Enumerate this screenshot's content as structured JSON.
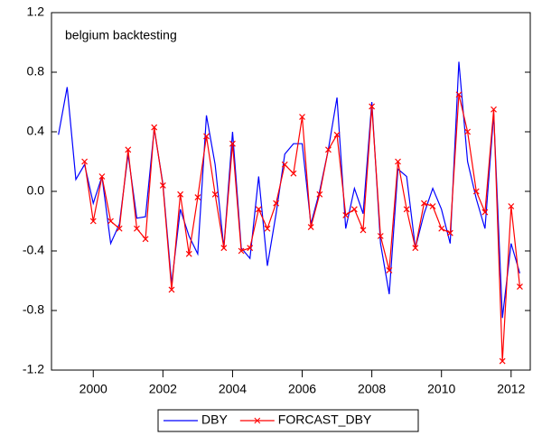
{
  "chart_data": {
    "type": "line",
    "annotation": "belgium backtesting",
    "x": [
      1999,
      1999.25,
      1999.5,
      1999.75,
      2000,
      2000.25,
      2000.5,
      2000.75,
      2001,
      2001.25,
      2001.5,
      2001.75,
      2002,
      2002.25,
      2002.5,
      2002.75,
      2003,
      2003.25,
      2003.5,
      2003.75,
      2004,
      2004.25,
      2004.5,
      2004.75,
      2005,
      2005.25,
      2005.5,
      2005.75,
      2006,
      2006.25,
      2006.5,
      2006.75,
      2007,
      2007.25,
      2007.5,
      2007.75,
      2008,
      2008.25,
      2008.5,
      2008.75,
      2009,
      2009.25,
      2009.5,
      2009.75,
      2010,
      2010.25,
      2010.5,
      2010.75,
      2011,
      2011.25,
      2011.5,
      2011.75,
      2012,
      2012.25
    ],
    "series": [
      {
        "name": "DBY",
        "color": "#0000ff",
        "marker": "none",
        "values": [
          0.38,
          0.7,
          0.08,
          0.18,
          -0.08,
          0.1,
          -0.35,
          -0.22,
          0.25,
          -0.18,
          -0.17,
          0.42,
          0.05,
          -0.62,
          -0.12,
          -0.3,
          -0.42,
          0.51,
          0.18,
          -0.38,
          0.4,
          -0.38,
          -0.45,
          0.1,
          -0.5,
          -0.15,
          0.25,
          0.32,
          0.32,
          -0.22,
          0.0,
          0.28,
          0.63,
          -0.25,
          0.02,
          -0.15,
          0.6,
          -0.35,
          -0.69,
          0.15,
          0.1,
          -0.38,
          -0.15,
          0.02,
          -0.12,
          -0.35,
          0.87,
          0.2,
          -0.05,
          -0.25,
          0.52,
          -0.85,
          -0.35,
          -0.55
        ]
      },
      {
        "name": "FORCAST_DBY",
        "color": "#ff0000",
        "marker": "x",
        "values": [
          null,
          null,
          null,
          0.2,
          -0.2,
          0.1,
          -0.2,
          -0.25,
          0.28,
          -0.25,
          -0.32,
          0.43,
          0.04,
          -0.66,
          -0.02,
          -0.42,
          -0.04,
          0.37,
          -0.02,
          -0.38,
          0.32,
          -0.4,
          -0.38,
          -0.12,
          -0.25,
          -0.08,
          0.18,
          0.12,
          0.5,
          -0.24,
          -0.02,
          0.28,
          0.38,
          -0.16,
          -0.12,
          -0.26,
          0.57,
          -0.3,
          -0.53,
          0.2,
          -0.12,
          -0.38,
          -0.08,
          -0.1,
          -0.25,
          -0.28,
          0.65,
          0.4,
          0.0,
          -0.14,
          0.55,
          -1.14,
          -0.1,
          -0.64
        ]
      }
    ],
    "xlim": [
      1998.8,
      2012.55
    ],
    "xticks": [
      2000,
      2002,
      2004,
      2006,
      2008,
      2010,
      2012
    ],
    "ylim": [
      -1.2,
      1.2
    ],
    "yticks": [
      1.2,
      0.8,
      0.4,
      {
        "value": 0,
        "label": "0.0"
      },
      -0.4,
      -0.8,
      -1.2
    ],
    "grid": false,
    "legend": "bottom"
  }
}
